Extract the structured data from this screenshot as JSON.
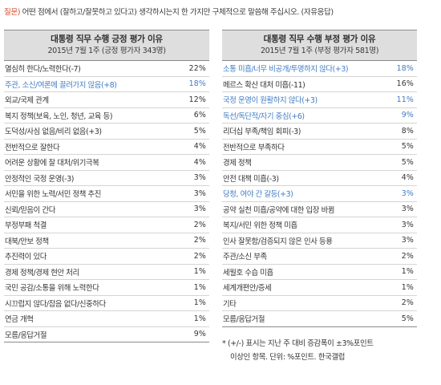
{
  "question": {
    "label": "질문)",
    "text": "어떤 점에서 (잘하고/잘못하고 있다고) 생각하시는지 한 가지만 구체적으로 말씀해 주십시오. (자유응답)"
  },
  "colors": {
    "highlight": "#3f7cc4",
    "question_label": "#d9472b",
    "header_bg": "#dedede"
  },
  "left": {
    "title": "대통령 직무 수행 긍정 평가 이유",
    "subtitle": "2015년 7월 1주 (긍정 평가자 343명)",
    "rows": [
      {
        "label": "열심히 한다/노력한다(-7)",
        "value": "22%",
        "highlight": false
      },
      {
        "label": "주관, 소신/여론에 끌려가지 않음(+8)",
        "value": "18%",
        "highlight": true
      },
      {
        "label": "외교/국제 관계",
        "value": "12%",
        "highlight": false
      },
      {
        "label": "복지 정책(보육, 노인, 청년, 교육 등)",
        "value": "6%",
        "highlight": false
      },
      {
        "label": "도덕성/사심 없음/비리 없음(+3)",
        "value": "5%",
        "highlight": false
      },
      {
        "label": "전반적으로 잘한다",
        "value": "4%",
        "highlight": false
      },
      {
        "label": "어려운 상황에 잘 대처/위기극복",
        "value": "4%",
        "highlight": false
      },
      {
        "label": "안정적인 국정 운영(-3)",
        "value": "3%",
        "highlight": false
      },
      {
        "label": "서민을 위한 노력/서민 정책 추진",
        "value": "3%",
        "highlight": false
      },
      {
        "label": "신뢰/믿음이 간다",
        "value": "3%",
        "highlight": false
      },
      {
        "label": "부정부패 척결",
        "value": "2%",
        "highlight": false
      },
      {
        "label": "대북/안보 정책",
        "value": "2%",
        "highlight": false
      },
      {
        "label": "추진력이 있다",
        "value": "2%",
        "highlight": false
      },
      {
        "label": "경제 정책/경제 현안 처리",
        "value": "1%",
        "highlight": false
      },
      {
        "label": "국민 공감/소통을 위해 노력한다",
        "value": "1%",
        "highlight": false
      },
      {
        "label": "시끄럽지 않다/잡음 없다/신중하다",
        "value": "1%",
        "highlight": false
      },
      {
        "label": "연금 개혁",
        "value": "1%",
        "highlight": false
      },
      {
        "label": "모름/응답거절",
        "value": "9%",
        "highlight": false
      }
    ]
  },
  "right": {
    "title": "대통령 직무 수행 부정 평가 이유",
    "subtitle": "2015년 7월 1주 (부정 평가자 581명)",
    "rows": [
      {
        "label": "소통 미흡/너무 비공개/투명하지 않다(+3)",
        "value": "18%",
        "highlight": true
      },
      {
        "label": "메르스 확산 대처 미흡(-11)",
        "value": "16%",
        "highlight": false
      },
      {
        "label": "국정 운영이 원활하지 않다(+3)",
        "value": "11%",
        "highlight": true
      },
      {
        "label": "독선/독단적/자기 중심(+6)",
        "value": "9%",
        "highlight": true
      },
      {
        "label": "리더십 부족/책임 회피(-3)",
        "value": "8%",
        "highlight": false
      },
      {
        "label": "전반적으로 부족하다",
        "value": "5%",
        "highlight": false
      },
      {
        "label": "경제 정책",
        "value": "5%",
        "highlight": false
      },
      {
        "label": "안전 대책 미흡(-3)",
        "value": "4%",
        "highlight": false
      },
      {
        "label": "당청, 여야 간 갈등(+3)",
        "value": "3%",
        "highlight": true
      },
      {
        "label": "공약 실천 미흡/공약에 대한 입장 바뀜",
        "value": "3%",
        "highlight": false
      },
      {
        "label": "복지/서민 위한 정책 미흡",
        "value": "3%",
        "highlight": false
      },
      {
        "label": "인사 잘못함/검증되지 않은 인사 등용",
        "value": "3%",
        "highlight": false
      },
      {
        "label": "주관/소신 부족",
        "value": "2%",
        "highlight": false
      },
      {
        "label": "세월호 수습 미흡",
        "value": "1%",
        "highlight": false
      },
      {
        "label": "세계개편안/증세",
        "value": "1%",
        "highlight": false
      },
      {
        "label": "기타",
        "value": "2%",
        "highlight": false
      },
      {
        "label": "모름/응답거절",
        "value": "5%",
        "highlight": false
      }
    ]
  },
  "note": {
    "line1": "* (+/-) 표시는 지난 주 대비 증감폭이 ±3%포인트",
    "line2": "이상인 항목. 단위: %포인트. 한국갤럽"
  }
}
